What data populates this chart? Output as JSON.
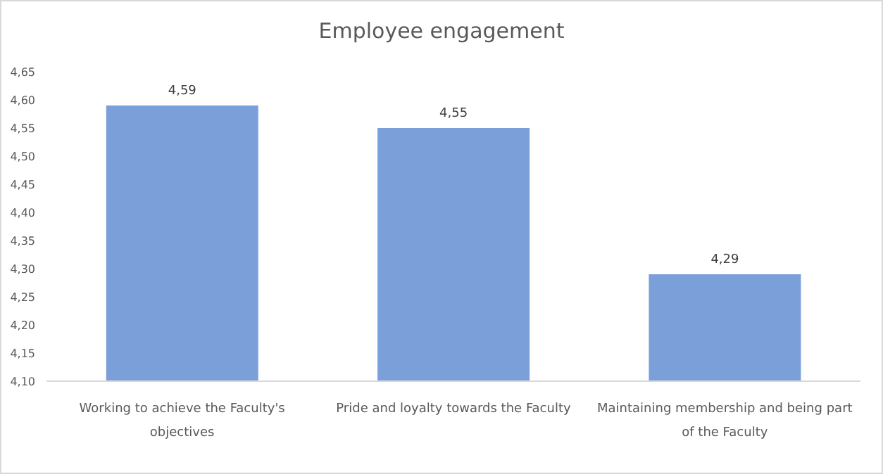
{
  "chart_data": {
    "type": "bar",
    "title": "Employee engagement",
    "categories": [
      "Working to achieve the Faculty's objectives",
      "Pride and loyalty towards the Faculty",
      "Maintaining membership and being part of the Faculty"
    ],
    "values": [
      4.59,
      4.55,
      4.29
    ],
    "value_labels": [
      "4,59",
      "4,55",
      "4,29"
    ],
    "color": "#7b9fd8",
    "ylim": [
      4.1,
      4.65
    ],
    "yticks": [
      {
        "value": 4.1,
        "label": "4,10"
      },
      {
        "value": 4.15,
        "label": "4,15"
      },
      {
        "value": 4.2,
        "label": "4,20"
      },
      {
        "value": 4.25,
        "label": "4,25"
      },
      {
        "value": 4.3,
        "label": "4,30"
      },
      {
        "value": 4.35,
        "label": "4,35"
      },
      {
        "value": 4.4,
        "label": "4,40"
      },
      {
        "value": 4.45,
        "label": "4,45"
      },
      {
        "value": 4.5,
        "label": "4,50"
      },
      {
        "value": 4.55,
        "label": "4,55"
      },
      {
        "value": 4.6,
        "label": "4,60"
      },
      {
        "value": 4.65,
        "label": "4,65"
      }
    ],
    "grid": false,
    "legend": false
  }
}
